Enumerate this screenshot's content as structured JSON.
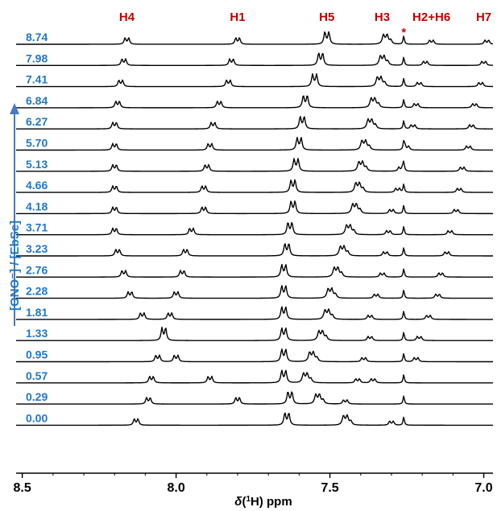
{
  "chart_data": {
    "type": "line",
    "title": "",
    "xlabel": "δ(¹H) ppm",
    "xlabel_parts": {
      "delta": "δ",
      "open": "(",
      "sup": "1",
      "element": "H",
      "close": ")",
      "unit": " ppm"
    },
    "ylabel": "[ONO⁻] / [EbSe]",
    "xlim": [
      8.52,
      6.97
    ],
    "x_reversed": true,
    "x_ticks": [
      {
        "value": 8.5,
        "label": "8.5"
      },
      {
        "value": 8.0,
        "label": "8.0"
      },
      {
        "value": 7.5,
        "label": "7.5"
      },
      {
        "value": 7.0,
        "label": "7.0"
      }
    ],
    "peak_labels": [
      {
        "label": "H4",
        "ppm": 8.16
      },
      {
        "label": "H1",
        "ppm": 7.8
      },
      {
        "label": "H5",
        "ppm": 7.51
      },
      {
        "label": "H3",
        "ppm": 7.33
      },
      {
        "label": "H2+H6",
        "ppm": 7.17
      },
      {
        "label": "H7",
        "ppm": 7.0
      }
    ],
    "impurity_marker": {
      "label": "*",
      "ppm": 7.26
    },
    "series": [
      {
        "ratio": "0.00",
        "H4": 8.13,
        "H1": null,
        "H5": 7.64,
        "H3": 7.3,
        "H2H6": 7.45,
        "H7": null,
        "H3_label_pos": 7.3,
        "width": 1.0
      },
      {
        "ratio": "0.29",
        "H4": 8.09,
        "H1": 7.8,
        "H5": 7.63,
        "H3": 7.45,
        "H2H6": 7.54,
        "H7": null,
        "width": 1.0
      },
      {
        "ratio": "0.57",
        "H4": 8.08,
        "H1": 7.89,
        "H5": 7.65,
        "H3": 7.41,
        "H2H6": 7.58,
        "H7": 7.36,
        "width": 1.0
      },
      {
        "ratio": "0.95",
        "H4": 8.06,
        "H1": 8.0,
        "H5": 7.65,
        "H3": 7.39,
        "H2H6": 7.56,
        "H7": 7.22,
        "width": 1.0
      },
      {
        "ratio": "1.33",
        "H4": 8.04,
        "H1": 8.04,
        "H5": 7.65,
        "H3": 7.37,
        "H2H6": 7.53,
        "H7": 7.21,
        "width": 1.0
      },
      {
        "ratio": "1.81",
        "H4": 8.11,
        "H1": 8.02,
        "H5": 7.65,
        "H3": 7.37,
        "H2H6": 7.51,
        "H7": 7.18,
        "width": 1.0
      },
      {
        "ratio": "2.28",
        "H4": 8.15,
        "H1": 8.0,
        "H5": 7.65,
        "H3": 7.35,
        "H2H6": 7.5,
        "H7": 7.15,
        "width": 1.0
      },
      {
        "ratio": "2.76",
        "H4": 8.17,
        "H1": 7.98,
        "H5": 7.65,
        "H3": 7.33,
        "H2H6": 7.48,
        "H7": 7.14,
        "width": 1.0
      },
      {
        "ratio": "3.23",
        "H4": 8.19,
        "H1": 7.97,
        "H5": 7.64,
        "H3": 7.32,
        "H2H6": 7.46,
        "H7": 7.12,
        "width": 1.0
      },
      {
        "ratio": "3.71",
        "H4": 8.2,
        "H1": 7.95,
        "H5": 7.63,
        "H3": 7.31,
        "H2H6": 7.44,
        "H7": 7.11,
        "width": 1.0
      },
      {
        "ratio": "4.18",
        "H4": 8.2,
        "H1": 7.91,
        "H5": 7.62,
        "H3": 7.3,
        "H2H6": 7.42,
        "H7": 7.09,
        "width": 1.0
      },
      {
        "ratio": "4.66",
        "H4": 8.2,
        "H1": 7.91,
        "H5": 7.62,
        "H3": 7.28,
        "H2H6": 7.41,
        "H7": 7.08,
        "width": 1.0
      },
      {
        "ratio": "5.13",
        "H4": 8.2,
        "H1": 7.9,
        "H5": 7.61,
        "H3": 7.27,
        "H2H6": 7.4,
        "H7": 7.07,
        "width": 1.0
      },
      {
        "ratio": "5.70",
        "H4": 8.2,
        "H1": 7.89,
        "H5": 7.6,
        "H3": 7.25,
        "H2H6": 7.39,
        "H7": 7.05,
        "width": 1.0
      },
      {
        "ratio": "6.27",
        "H4": 8.2,
        "H1": 7.88,
        "H5": 7.59,
        "H3": 7.23,
        "H2H6": 7.37,
        "H7": 7.04,
        "width": 1.0
      },
      {
        "ratio": "6.84",
        "H4": 8.19,
        "H1": 7.86,
        "H5": 7.58,
        "H3": 7.22,
        "H2H6": 7.36,
        "H7": 7.03,
        "width": 1.0
      },
      {
        "ratio": "7.41",
        "H4": 8.18,
        "H1": 7.83,
        "H5": 7.55,
        "H3": 7.21,
        "H2H6": 7.34,
        "H7": 7.01,
        "width": 1.0
      },
      {
        "ratio": "7.98",
        "H4": 8.17,
        "H1": 7.82,
        "H5": 7.53,
        "H3": 7.19,
        "H2H6": 7.33,
        "H7": 7.0,
        "width": 1.0
      },
      {
        "ratio": "8.74",
        "H4": 8.16,
        "H1": 7.8,
        "H5": 7.51,
        "H3": 7.17,
        "H2H6": 7.32,
        "H7": 6.99,
        "width": 1.0
      }
    ]
  }
}
